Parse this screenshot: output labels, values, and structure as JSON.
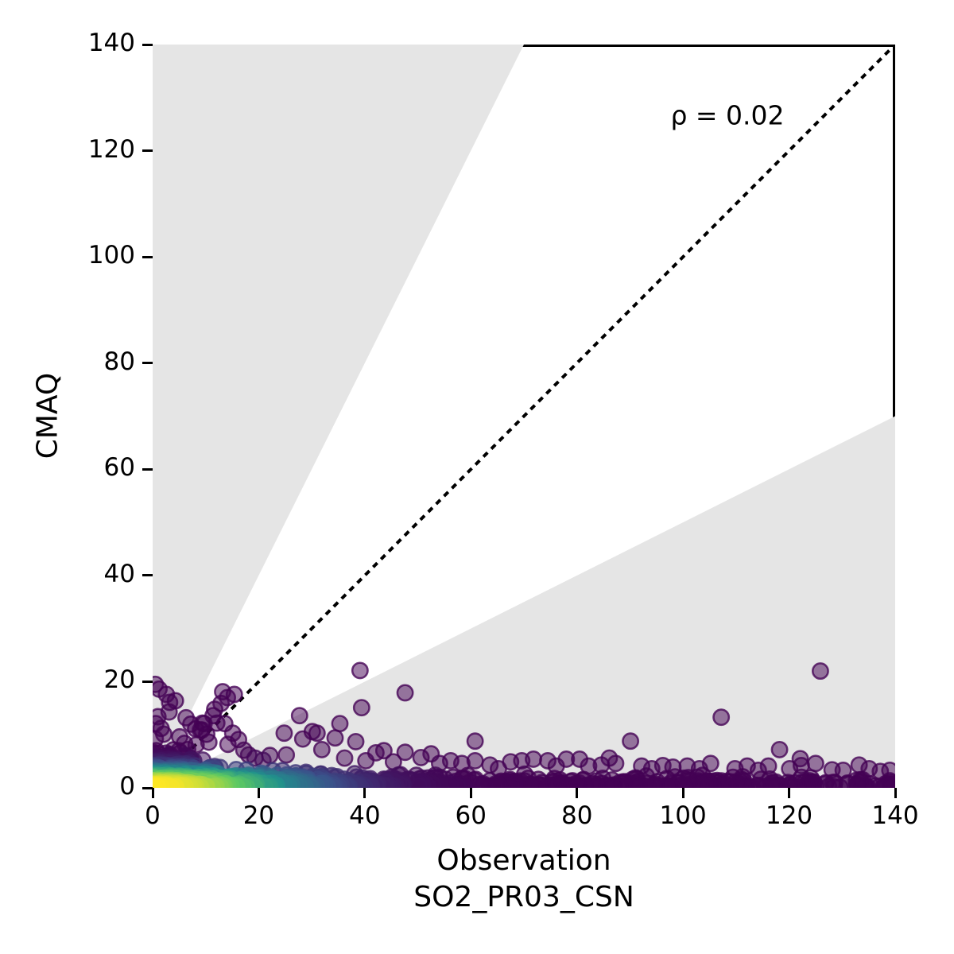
{
  "figure": {
    "background": "#ffffff"
  },
  "axes": {
    "ylabel": "CMAQ",
    "xlabel_line1": "Observation",
    "xlabel_line2": "SO2_PR03_CSN",
    "xtick_labels": [
      "0",
      "20",
      "40",
      "60",
      "80",
      "100",
      "120",
      "140"
    ],
    "ytick_labels": [
      "0",
      "20",
      "40",
      "60",
      "80",
      "100",
      "120",
      "140"
    ],
    "spine_color": "#000000"
  },
  "annotation": {
    "text": "ρ = 0.02"
  },
  "chart_data": {
    "type": "scatter",
    "title": "",
    "xlabel": "Observation SO2_PR03_CSN",
    "ylabel": "CMAQ",
    "xlim": [
      0,
      140
    ],
    "ylim": [
      0,
      140
    ],
    "xticks": [
      0,
      20,
      40,
      60,
      80,
      100,
      120,
      140
    ],
    "yticks": [
      0,
      20,
      40,
      60,
      80,
      100,
      120,
      140
    ],
    "grid": false,
    "legend": null,
    "correlation_rho": 0.02,
    "annotation_text": "ρ = 0.02",
    "annotation_pos_data": [
      108.4,
      126.7
    ],
    "identity_line": {
      "from": [
        0,
        0
      ],
      "to": [
        140,
        140
      ],
      "style": "dotted",
      "color": "#000000",
      "width_data": 0.6,
      "dash_data": [
        1.1,
        1.0
      ]
    },
    "factor_of_2_shading": {
      "color": "#e5e5e5",
      "upper_polygon": [
        [
          0,
          0
        ],
        [
          0,
          140
        ],
        [
          70,
          140
        ]
      ],
      "lower_polygon": [
        [
          0,
          0
        ],
        [
          140,
          70
        ],
        [
          140,
          0
        ]
      ]
    },
    "density_colormap": {
      "name": "viridis",
      "stops": [
        "#440154",
        "#3b528b",
        "#21918c",
        "#5ec962",
        "#fde725"
      ]
    },
    "density_color_model": {
      "x_scale": 28,
      "y_scale": 3.0
    },
    "marker": {
      "radius_data": 1.45,
      "fill_opacity": 0.5,
      "stroke_opacity": 0.78,
      "stroke_width_data": 0.38
    },
    "points": [
      [
        0.5,
        19.5
      ],
      [
        1.2,
        18.6
      ],
      [
        2.6,
        17.6
      ],
      [
        3.2,
        16.1
      ],
      [
        4.3,
        16.4
      ],
      [
        3.1,
        14.3
      ],
      [
        1.0,
        13.4
      ],
      [
        0.6,
        12.1
      ],
      [
        1.6,
        11.2
      ],
      [
        2.1,
        10.1
      ],
      [
        0.5,
        9.2
      ],
      [
        5.1,
        9.6
      ],
      [
        6.3,
        13.2
      ],
      [
        7.2,
        12.0
      ],
      [
        8.1,
        11.1
      ],
      [
        9.4,
        12.2
      ],
      [
        9.0,
        10.9
      ],
      [
        10.2,
        10.1
      ],
      [
        11.7,
        14.8
      ],
      [
        11.4,
        13.6
      ],
      [
        12.1,
        12.2
      ],
      [
        13.2,
        18.1
      ],
      [
        12.9,
        15.9
      ],
      [
        13.6,
        12.1
      ],
      [
        14.1,
        17.0
      ],
      [
        15.4,
        17.6
      ],
      [
        15.1,
        10.3
      ],
      [
        16.2,
        9.1
      ],
      [
        14.2,
        8.2
      ],
      [
        9.7,
        12.1
      ],
      [
        9.3,
        10.9
      ],
      [
        10.6,
        8.6
      ],
      [
        8.2,
        8.1
      ],
      [
        6.6,
        7.2
      ],
      [
        5.2,
        6.6
      ],
      [
        3.1,
        6.1
      ],
      [
        17.2,
        7.1
      ],
      [
        18.1,
        6.2
      ],
      [
        19.3,
        5.6
      ],
      [
        20.8,
        5.2
      ],
      [
        22.1,
        6.1
      ],
      [
        24.8,
        10.3
      ],
      [
        25.2,
        6.2
      ],
      [
        27.7,
        13.6
      ],
      [
        28.3,
        9.2
      ],
      [
        30.1,
        10.6
      ],
      [
        31.0,
        10.3
      ],
      [
        31.9,
        7.2
      ],
      [
        34.4,
        9.4
      ],
      [
        35.3,
        12.1
      ],
      [
        36.2,
        5.6
      ],
      [
        38.3,
        8.7
      ],
      [
        39.1,
        22.1
      ],
      [
        39.4,
        15.1
      ],
      [
        40.2,
        5.1
      ],
      [
        42.1,
        6.6
      ],
      [
        43.6,
        7.0
      ],
      [
        45.4,
        4.9
      ],
      [
        47.6,
        17.9
      ],
      [
        47.6,
        6.7
      ],
      [
        50.6,
        5.7
      ],
      [
        52.5,
        6.4
      ],
      [
        54.1,
        4.6
      ],
      [
        56.2,
        5.1
      ],
      [
        58.3,
        4.6
      ],
      [
        60.8,
        8.8
      ],
      [
        60.8,
        5.1
      ],
      [
        63.6,
        4.3
      ],
      [
        65.2,
        3.6
      ],
      [
        67.5,
        4.9
      ],
      [
        69.6,
        5.1
      ],
      [
        71.8,
        5.4
      ],
      [
        74.5,
        5.1
      ],
      [
        76.1,
        4.1
      ],
      [
        78.0,
        5.4
      ],
      [
        80.5,
        5.4
      ],
      [
        82.2,
        4.1
      ],
      [
        84.6,
        4.3
      ],
      [
        86.1,
        5.6
      ],
      [
        87.3,
        4.6
      ],
      [
        90.1,
        8.8
      ],
      [
        92.2,
        4.1
      ],
      [
        94.1,
        3.6
      ],
      [
        96.2,
        4.2
      ],
      [
        98.1,
        3.9
      ],
      [
        100.8,
        4.1
      ],
      [
        103.1,
        3.6
      ],
      [
        105.2,
        4.6
      ],
      [
        107.2,
        13.3
      ],
      [
        109.8,
        3.6
      ],
      [
        112.1,
        4.1
      ],
      [
        114.2,
        3.3
      ],
      [
        116.1,
        4.1
      ],
      [
        118.2,
        7.2
      ],
      [
        120.1,
        3.6
      ],
      [
        122.1,
        5.5
      ],
      [
        122.3,
        4.2
      ],
      [
        125.0,
        4.6
      ],
      [
        125.9,
        22.0
      ],
      [
        128.1,
        3.4
      ],
      [
        130.2,
        3.3
      ],
      [
        133.2,
        4.3
      ],
      [
        135.1,
        3.6
      ],
      [
        137.2,
        3.1
      ],
      [
        139.0,
        3.3
      ]
    ],
    "dense_band": {
      "seed": 1337,
      "n_band": 850,
      "n_origin_blob": 230,
      "band_x_power": 1.6,
      "band_y_scale_base": 0.85,
      "band_y_scale_amp": 2.3,
      "band_y_scale_decay": 20,
      "band_y_max_base": 2.6,
      "band_y_max_amp": 7.5,
      "band_y_max_decay": 10,
      "blob_x_sigma": 5.0,
      "blob_y_sigma": 2.6
    }
  }
}
